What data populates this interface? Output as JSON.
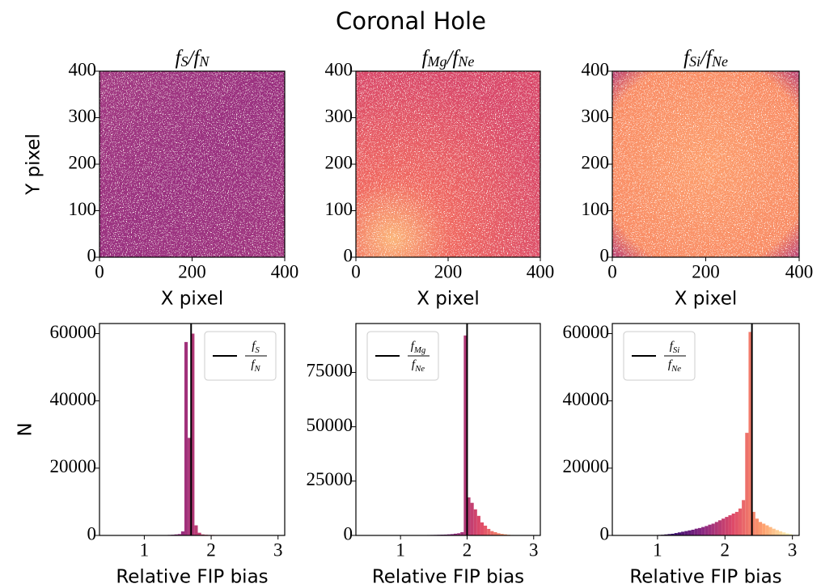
{
  "title": "Coronal Hole",
  "chart_data": [
    {
      "type": "image",
      "title": [
        "f",
        "S",
        "/f",
        "N"
      ],
      "xlabel": "X pixel",
      "ylabel": "Y pixel",
      "xlim": [
        0,
        400
      ],
      "ylim": [
        0,
        400
      ],
      "xticks": [
        0,
        200,
        400
      ],
      "yticks": [
        0,
        100,
        200,
        300,
        400
      ]
    },
    {
      "type": "image",
      "title": [
        "f",
        "Mg",
        "/f",
        "Ne"
      ],
      "xlabel": "X pixel",
      "xlim": [
        0,
        400
      ],
      "ylim": [
        0,
        400
      ],
      "xticks": [
        0,
        200,
        400
      ],
      "yticks": [
        0,
        100,
        200,
        300,
        400
      ]
    },
    {
      "type": "image",
      "title": [
        "f",
        "Si",
        "/f",
        "Ne"
      ],
      "xlabel": "X pixel",
      "xlim": [
        0,
        400
      ],
      "ylim": [
        0,
        400
      ],
      "xticks": [
        0,
        200,
        400
      ],
      "yticks": [
        0,
        100,
        200,
        300,
        400
      ]
    },
    {
      "type": "histogram",
      "xlabel": "Relative FIP bias",
      "ylabel": "N",
      "xlim": [
        0.33,
        3.1
      ],
      "ylim": [
        0,
        63000
      ],
      "xticks": [
        1,
        2,
        3
      ],
      "yticks": [
        0,
        20000,
        40000,
        60000
      ],
      "color_scale": {
        "domain": [
          0.5,
          3
        ],
        "colors": [
          "#000004",
          "#3b0f70",
          "#8c2981",
          "#de4968",
          "#fe9f6d",
          "#fcfdbf"
        ]
      },
      "bins": [
        0.5,
        0.55,
        0.6,
        0.65,
        0.7,
        0.75,
        0.8,
        0.85,
        0.9,
        0.95,
        1.0,
        1.05,
        1.1,
        1.15,
        1.2,
        1.25,
        1.3,
        1.35,
        1.4,
        1.45,
        1.5,
        1.55,
        1.6,
        1.65,
        1.7,
        1.75,
        1.8,
        1.85,
        1.9,
        1.95,
        2.0,
        2.05,
        2.1,
        2.15,
        2.2,
        2.25,
        2.3,
        2.35,
        2.4,
        2.45,
        2.5,
        2.55,
        2.6,
        2.65,
        2.7,
        2.75,
        2.8,
        2.85,
        2.9,
        2.95,
        3.0
      ],
      "counts": [
        0,
        0,
        20,
        30,
        40,
        50,
        60,
        70,
        80,
        90,
        100,
        100,
        100,
        100,
        100,
        100,
        120,
        150,
        200,
        300,
        400,
        1200,
        57500,
        29000,
        60000,
        3000,
        800,
        300,
        200,
        150,
        150,
        120,
        100,
        100,
        100,
        100,
        100,
        100,
        100,
        100,
        100,
        100,
        100,
        100,
        100,
        100,
        100,
        100,
        100,
        100
      ],
      "vline": {
        "x": 1.7,
        "color": "#000000",
        "name": {
          "num": [
            "f",
            "S"
          ],
          "den": [
            "f",
            "N"
          ]
        }
      },
      "legend": "upper right"
    },
    {
      "type": "histogram",
      "xlabel": "Relative FIP bias",
      "xlim": [
        0.33,
        3.1
      ],
      "ylim": [
        0,
        97500
      ],
      "xticks": [
        1,
        2,
        3
      ],
      "yticks": [
        0,
        25000,
        50000,
        75000
      ],
      "color_scale": {
        "domain": [
          1,
          3
        ],
        "colors": [
          "#000004",
          "#3b0f70",
          "#8c2981",
          "#de4968",
          "#fe9f6d",
          "#fcfdbf"
        ]
      },
      "bins": [
        0.5,
        0.55,
        0.6,
        0.65,
        0.7,
        0.75,
        0.8,
        0.85,
        0.9,
        0.95,
        1.0,
        1.05,
        1.1,
        1.15,
        1.2,
        1.25,
        1.3,
        1.35,
        1.4,
        1.45,
        1.5,
        1.55,
        1.6,
        1.65,
        1.7,
        1.75,
        1.8,
        1.85,
        1.9,
        1.95,
        2.0,
        2.05,
        2.1,
        2.15,
        2.2,
        2.25,
        2.3,
        2.35,
        2.4,
        2.45,
        2.5,
        2.55,
        2.6,
        2.65,
        2.7,
        2.75,
        2.8,
        2.85,
        2.9,
        2.95,
        3.0
      ],
      "counts": [
        0,
        0,
        10,
        20,
        30,
        40,
        50,
        60,
        70,
        80,
        100,
        100,
        100,
        100,
        120,
        140,
        160,
        180,
        200,
        220,
        250,
        300,
        350,
        400,
        500,
        600,
        800,
        1000,
        1500,
        92000,
        17500,
        15000,
        12000,
        9000,
        6000,
        4500,
        3000,
        2000,
        1500,
        1000,
        700,
        500,
        300,
        200,
        100,
        100,
        100,
        100,
        100,
        100
      ],
      "vline": {
        "x": 2.0,
        "color": "#000000",
        "name": {
          "num": [
            "f",
            "Mg"
          ],
          "den": [
            "f",
            "Ne"
          ]
        }
      },
      "legend": "upper left"
    },
    {
      "type": "histogram",
      "xlabel": "Relative FIP bias",
      "xlim": [
        0.33,
        3.1
      ],
      "ylim": [
        0,
        63000
      ],
      "xticks": [
        1,
        2,
        3
      ],
      "yticks": [
        0,
        20000,
        40000,
        60000
      ],
      "color_scale": {
        "domain": [
          0.8,
          3
        ],
        "colors": [
          "#000004",
          "#3b0f70",
          "#8c2981",
          "#de4968",
          "#fe9f6d",
          "#fcfdbf"
        ]
      },
      "bins": [
        0.5,
        0.55,
        0.6,
        0.65,
        0.7,
        0.75,
        0.8,
        0.85,
        0.9,
        0.95,
        1.0,
        1.05,
        1.1,
        1.15,
        1.2,
        1.25,
        1.3,
        1.35,
        1.4,
        1.45,
        1.5,
        1.55,
        1.6,
        1.65,
        1.7,
        1.75,
        1.8,
        1.85,
        1.9,
        1.95,
        2.0,
        2.05,
        2.1,
        2.15,
        2.2,
        2.25,
        2.3,
        2.35,
        2.4,
        2.45,
        2.5,
        2.55,
        2.6,
        2.65,
        2.7,
        2.75,
        2.8,
        2.85,
        2.9,
        2.95,
        3.0
      ],
      "counts": [
        0,
        10,
        20,
        30,
        40,
        50,
        60,
        80,
        100,
        120,
        150,
        200,
        300,
        400,
        500,
        700,
        900,
        1100,
        1300,
        1500,
        1700,
        2000,
        2200,
        2500,
        2800,
        3200,
        3500,
        4000,
        4500,
        5000,
        5500,
        6000,
        6500,
        7000,
        8000,
        10500,
        30500,
        60500,
        7000,
        5000,
        4000,
        3500,
        3000,
        2500,
        2000,
        1600,
        1200,
        900,
        600,
        400
      ],
      "vline": {
        "x": 2.4,
        "color": "#000000",
        "name": {
          "num": [
            "f",
            "Si"
          ],
          "den": [
            "f",
            "Ne"
          ]
        }
      },
      "legend": "upper left"
    }
  ]
}
